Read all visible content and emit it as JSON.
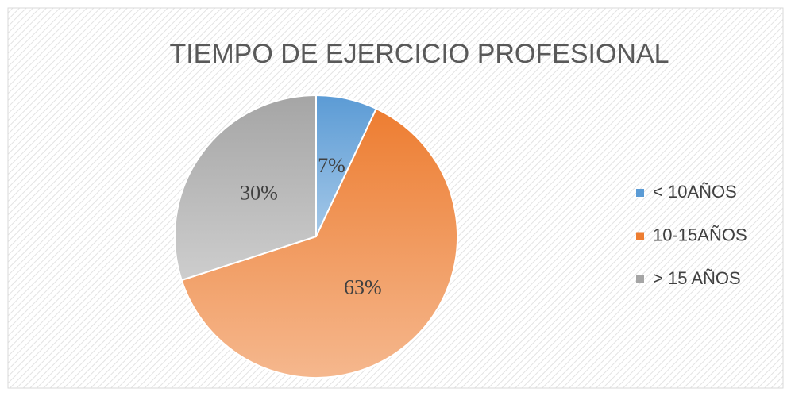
{
  "chart_data": {
    "type": "pie",
    "title": "TIEMPO DE EJERCICIO PROFESIONAL",
    "categories": [
      "< 10AÑOS",
      "10-15AÑOS",
      "> 15 AÑOS"
    ],
    "values": [
      7,
      63,
      30
    ],
    "value_labels": [
      "7%",
      "63%",
      "30%"
    ],
    "colors": [
      "#5b9bd5",
      "#ed7d31",
      "#a5a5a5"
    ],
    "legend": "right"
  }
}
